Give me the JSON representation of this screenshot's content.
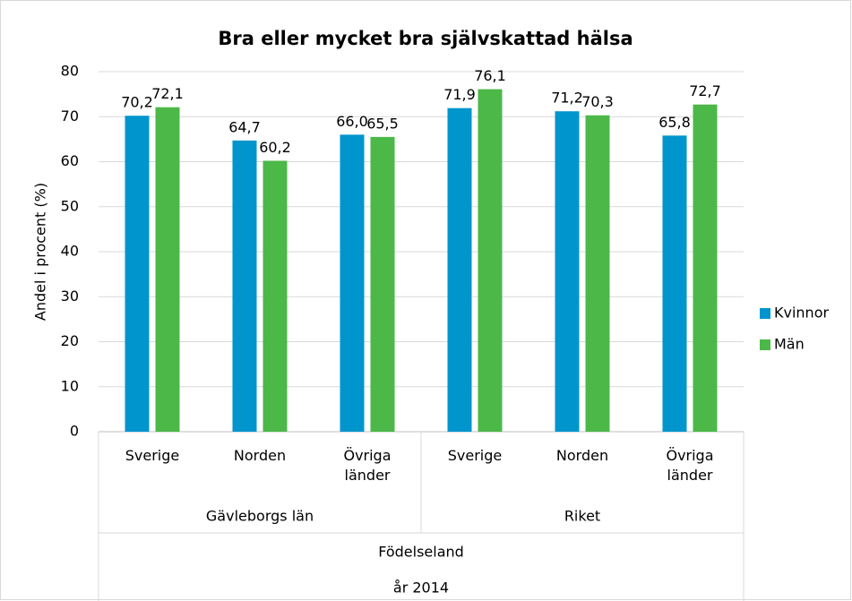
{
  "chart_data": {
    "type": "bar",
    "title": "Bra eller mycket bra självskattad hälsa",
    "y_label": "Andel i procent (%)",
    "x_label": "Födelseland",
    "subtitle": "år 2014",
    "categories": [
      "Sverige",
      "Norden",
      "Övriga länder",
      "Sverige",
      "Norden",
      "Övriga länder"
    ],
    "category_groups": [
      "Gävleborgs län",
      "Riket"
    ],
    "series": [
      {
        "name": "Kvinnor",
        "color": "#0095cd",
        "values": [
          70.2,
          64.7,
          66.0,
          71.9,
          71.2,
          65.8
        ],
        "value_labels": [
          "70,2",
          "64,7",
          "66,0",
          "71,9",
          "71,2",
          "65,8"
        ]
      },
      {
        "name": "Män",
        "color": "#4cb848",
        "values": [
          72.1,
          60.2,
          65.5,
          76.1,
          70.3,
          72.7
        ],
        "value_labels": [
          "72,1",
          "60,2",
          "65,5",
          "76,1",
          "70,3",
          "72,7"
        ]
      }
    ],
    "ylim": [
      0,
      80
    ],
    "yticks": [
      0,
      10,
      20,
      30,
      40,
      50,
      60,
      70,
      80
    ],
    "grid": true,
    "legend": "right"
  }
}
